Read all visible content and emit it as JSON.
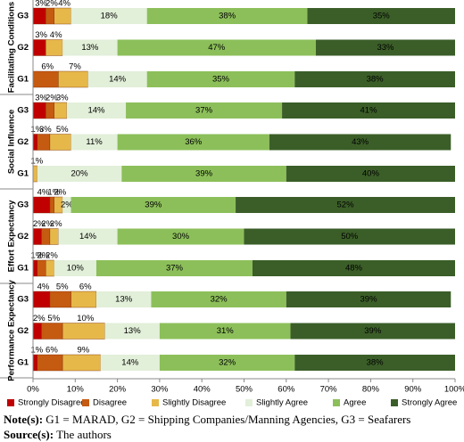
{
  "chart_data": {
    "type": "stacked-bar-horizontal",
    "groups": [
      {
        "name": "Facilitating Conditions",
        "categories": [
          "G3",
          "G2",
          "G1"
        ]
      },
      {
        "name": "Social Influence",
        "categories": [
          "G3",
          "G2",
          "G1"
        ]
      },
      {
        "name": "Effort Expectancy",
        "categories": [
          "G3",
          "G2",
          "G1"
        ]
      },
      {
        "name": "Performance Expectancy",
        "categories": [
          "G3",
          "G2",
          "G1"
        ]
      }
    ],
    "series": [
      {
        "name": "Strongly Disagree",
        "color": "#c00000",
        "values": [
          3,
          3,
          0,
          3,
          1,
          0,
          4,
          2,
          1,
          4,
          2,
          1
        ],
        "value_labels": [
          "3%",
          "3%",
          null,
          "3%",
          "1%",
          null,
          "4%",
          "2%",
          "1%",
          "4%",
          "2%",
          "1%"
        ]
      },
      {
        "name": "Disagree",
        "color": "#c55a11",
        "values": [
          2,
          0,
          6,
          2,
          3,
          0,
          1,
          2,
          2,
          5,
          5,
          6
        ],
        "value_labels": [
          "2%",
          null,
          "6%",
          "2%",
          "3%",
          null,
          "1%",
          "2%",
          "2%",
          "5%",
          "5%",
          "6%"
        ]
      },
      {
        "name": "Slightly Disagree",
        "color": "#e6b84a",
        "values": [
          4,
          4,
          7,
          3,
          5,
          1,
          2,
          2,
          2,
          6,
          10,
          9
        ],
        "value_labels": [
          "4%",
          "4%",
          "7%",
          "3%",
          "5%",
          "1%",
          "2%",
          "2%",
          "2%",
          "6%",
          "10%",
          "9%"
        ]
      },
      {
        "name": "Slightly Agree",
        "color": "#e2efd9",
        "values": [
          18,
          13,
          14,
          14,
          11,
          20,
          2,
          14,
          10,
          13,
          13,
          14
        ],
        "value_labels": [
          "18%",
          "13%",
          "14%",
          "14%",
          "11%",
          "20%",
          "2%",
          "14%",
          "10%",
          "13%",
          "13%",
          "14%"
        ]
      },
      {
        "name": "Agree",
        "color": "#8cbf5a",
        "values": [
          38,
          47,
          35,
          37,
          36,
          39,
          39,
          30,
          37,
          32,
          31,
          32
        ],
        "value_labels": [
          "38%",
          "47%",
          "35%",
          "37%",
          "36%",
          "39%",
          "39%",
          "30%",
          "37%",
          "32%",
          "31%",
          "32%"
        ]
      },
      {
        "name": "Strongly Agree",
        "color": "#3b5e28",
        "values": [
          35,
          33,
          38,
          41,
          43,
          40,
          52,
          50,
          48,
          39,
          39,
          38
        ],
        "value_labels": [
          "35%",
          "33%",
          "38%",
          "41%",
          "43%",
          "40%",
          "52%",
          "50%",
          "48%",
          "39%",
          "39%",
          "38%"
        ]
      }
    ],
    "xlim": [
      0,
      100
    ],
    "xticks": [
      {
        "value": 0,
        "label": "0%"
      },
      {
        "value": 10,
        "label": "10%"
      },
      {
        "value": 20,
        "label": "20%"
      },
      {
        "value": 30,
        "label": "30%"
      },
      {
        "value": 40,
        "label": "40%"
      },
      {
        "value": 50,
        "label": "50%"
      },
      {
        "value": 60,
        "label": "60%"
      },
      {
        "value": 70,
        "label": "70%"
      },
      {
        "value": 80,
        "label": "80%"
      },
      {
        "value": 90,
        "label": "90%"
      },
      {
        "value": 100,
        "label": "100%"
      }
    ],
    "legend": "bottom"
  },
  "notes": {
    "note_label": "Note(s):",
    "note": "G1 = MARAD, G2 = Shipping Companies/Manning Agencies, G3 = Seafarers",
    "source_label": "Source(s):",
    "source": "The authors"
  }
}
